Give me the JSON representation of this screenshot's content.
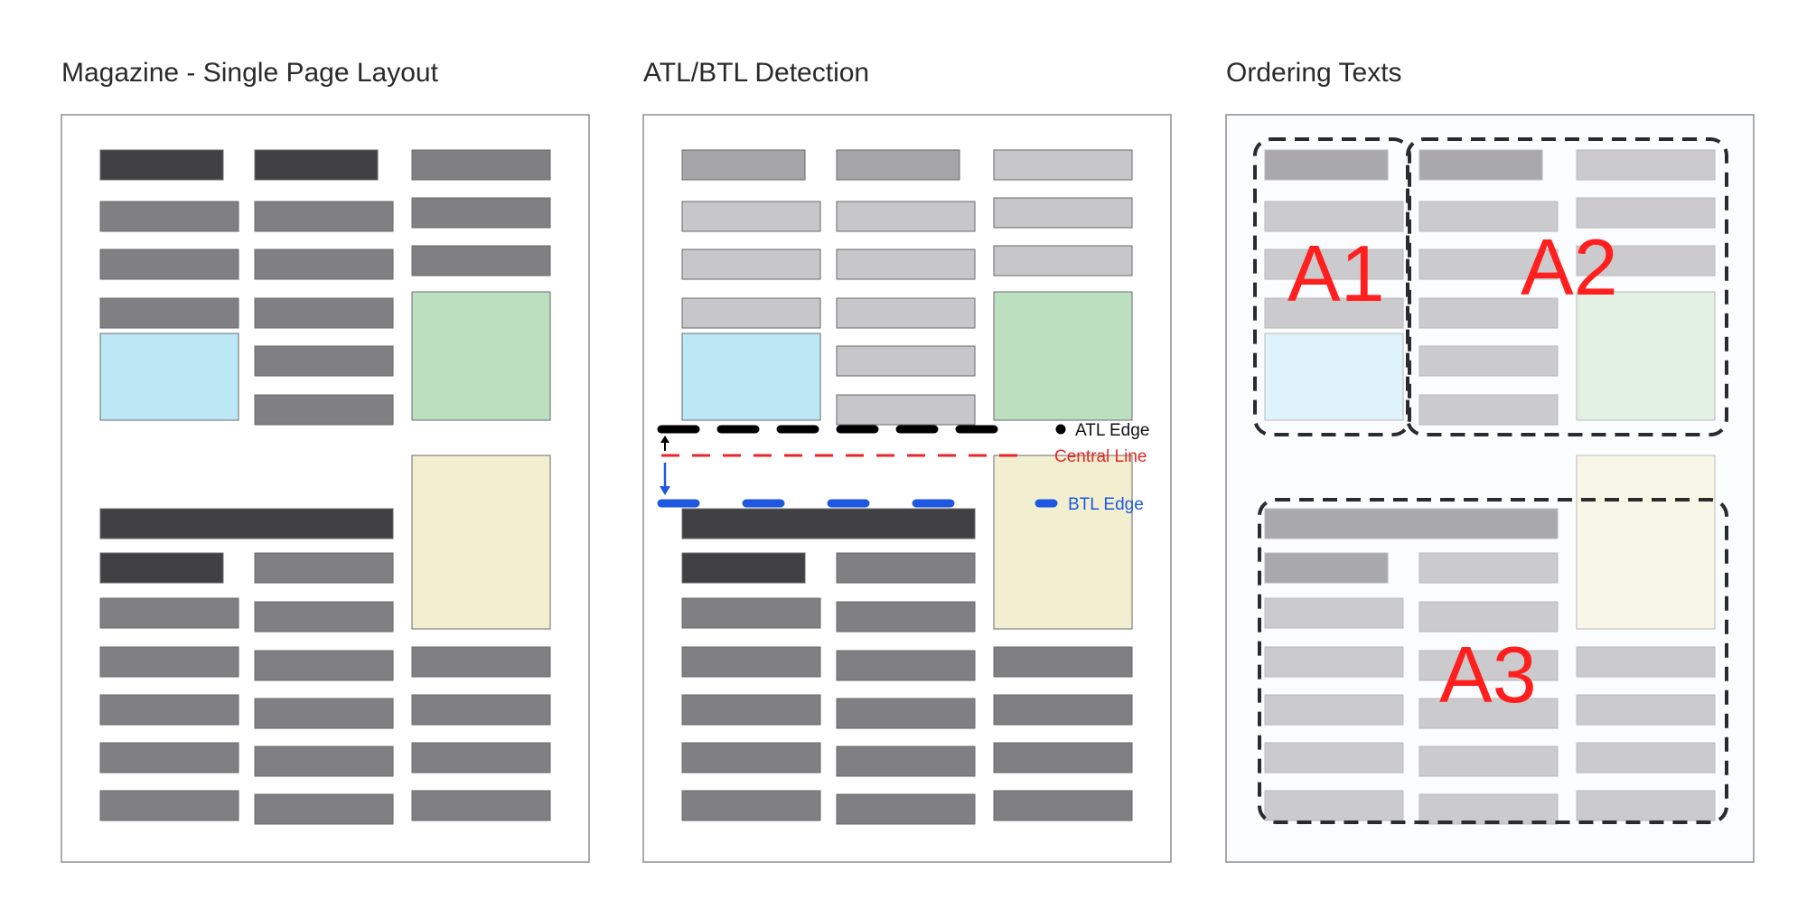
{
  "panels": [
    {
      "title": "Magazine - Single Page Layout"
    },
    {
      "title": "ATL/BTL Detection"
    },
    {
      "title": "Ordering Texts"
    }
  ],
  "detection": {
    "atl_label": "ATL Edge",
    "central_label": "Central Line",
    "btl_label": "BTL Edge"
  },
  "regions": [
    {
      "label": "A1"
    },
    {
      "label": "A2"
    },
    {
      "label": "A3"
    }
  ],
  "colors": {
    "headline_block": "#414143",
    "text_block": "#808082",
    "image_blue": "#bce8f6",
    "image_green": "#bce0bf",
    "image_yellow": "#f2efd1",
    "atl_edge": "#000000",
    "central_line": "#e8272a",
    "btl_edge": "#1f57e0",
    "region_label": "#ff1f1f"
  }
}
